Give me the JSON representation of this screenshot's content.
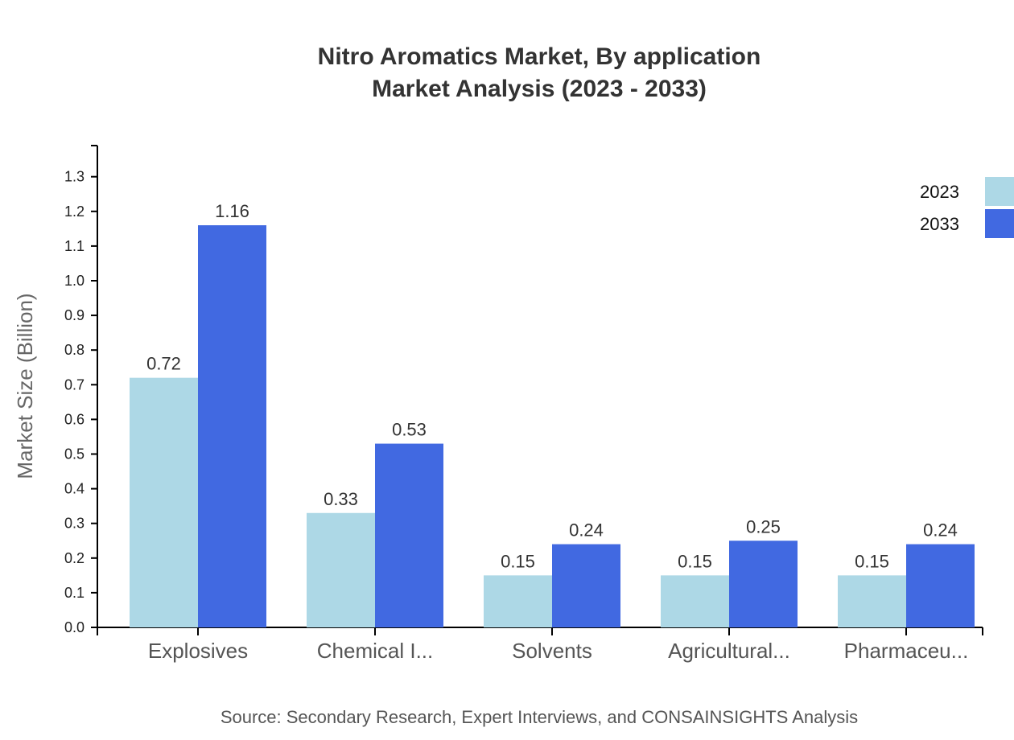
{
  "title_line1": "Nitro Aromatics Market, By application",
  "title_line2": "Market Analysis (2023 - 2033)",
  "source": "Source: Secondary Research, Expert Interviews, and CONSAINSIGHTS Analysis",
  "colors": {
    "2023": "#add8e6",
    "2033": "#4169e1"
  },
  "chart_data": {
    "type": "bar",
    "title": "Nitro Aromatics Market, By application Market Analysis (2023 - 2033)",
    "xlabel": "",
    "ylabel": "Market Size (Billion)",
    "ylim": [
      0,
      1.39
    ],
    "yticks": [
      "0.0",
      "0.1",
      "0.2",
      "0.3",
      "0.4",
      "0.5",
      "0.6",
      "0.7",
      "0.8",
      "0.9",
      "1.0",
      "1.1",
      "1.2",
      "1.3"
    ],
    "categories": [
      "Explosives",
      "Chemical I...",
      "Solvents",
      "Agricultural...",
      "Pharmaceu..."
    ],
    "series": [
      {
        "name": "2023",
        "color": "#add8e6",
        "values": [
          0.72,
          0.33,
          0.15,
          0.15,
          0.15
        ]
      },
      {
        "name": "2033",
        "color": "#4169e1",
        "values": [
          1.16,
          0.53,
          0.24,
          0.25,
          0.24
        ]
      }
    ],
    "legend": {
      "position": "top-right",
      "entries": [
        "2023",
        "2033"
      ]
    },
    "grid": false
  }
}
